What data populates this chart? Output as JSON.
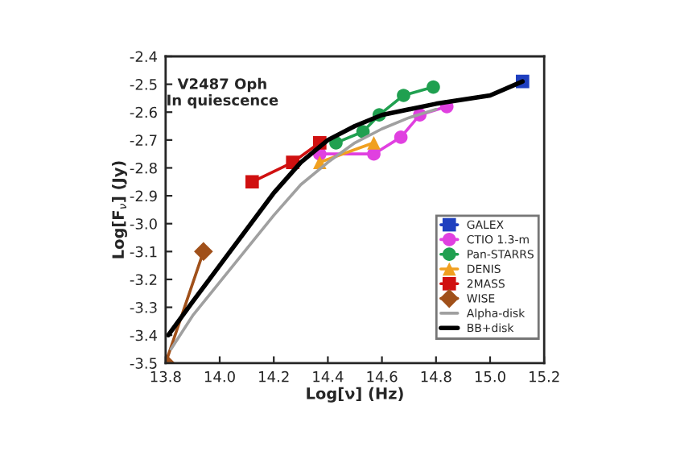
{
  "chart_data": {
    "type": "line",
    "xlabel": "Log[ν] (Hz)",
    "ylabel": "Log[F$_{ν}$] (Jy)",
    "annotations": [
      "V2487 Oph\nIn quiescence"
    ],
    "xlim": [
      13.8,
      15.2
    ],
    "xticks": [
      {
        "value": 13.8,
        "label": "13.8"
      },
      {
        "value": 14.0,
        "label": "14.0"
      },
      {
        "value": 14.2,
        "label": "14.2"
      },
      {
        "value": 14.4,
        "label": "14.4"
      },
      {
        "value": 14.6,
        "label": "14.6"
      },
      {
        "value": 14.8,
        "label": "14.8"
      },
      {
        "value": 15.0,
        "label": "15.0"
      },
      {
        "value": 15.2,
        "label": "15.2"
      }
    ],
    "ylim": [
      -3.5,
      -2.4
    ],
    "yticks": [
      -3.5,
      -3.4,
      -3.3,
      -3.2,
      -3.1,
      {
        "value": -3.0,
        "label": "-3.0"
      },
      -2.9,
      -2.8,
      -2.7,
      -2.6,
      -2.5,
      -2.4
    ],
    "grid": false,
    "legend": "right",
    "series": [
      {
        "name": "GALEX",
        "color": "#1f3fbf",
        "marker": "square",
        "x": [
          15.12
        ],
        "values": [
          -2.49
        ]
      },
      {
        "name": "CTIO 1.3-m",
        "color": "#e040e0",
        "marker": "circle",
        "x": [
          14.37,
          14.57,
          14.67,
          14.74,
          14.84
        ],
        "values": [
          -2.75,
          -2.75,
          -2.69,
          -2.61,
          -2.58
        ]
      },
      {
        "name": "Pan-STARRS",
        "color": "#20a050",
        "marker": "circle",
        "x": [
          14.43,
          14.53,
          14.59,
          14.68,
          14.79
        ],
        "values": [
          -2.71,
          -2.67,
          -2.61,
          -2.54,
          -2.51
        ]
      },
      {
        "name": "DENIS",
        "color": "#f0a020",
        "marker": "triangle",
        "x": [
          14.37,
          14.57
        ],
        "values": [
          -2.78,
          -2.71
        ]
      },
      {
        "name": "2MASS",
        "color": "#d01010",
        "marker": "square",
        "x": [
          14.12,
          14.27,
          14.37
        ],
        "values": [
          -2.85,
          -2.78,
          -2.71
        ]
      },
      {
        "name": "WISE",
        "color": "#a0501a",
        "marker": "diamond",
        "x": [
          13.8,
          13.94
        ],
        "values": [
          -3.5,
          -3.1
        ]
      },
      {
        "name": "Alpha-disk",
        "color": "#a0a0a0",
        "marker": "none",
        "x": [
          13.82,
          13.9,
          14.0,
          14.1,
          14.2,
          14.3,
          14.4,
          14.5,
          14.6,
          14.7,
          14.8
        ],
        "values": [
          -3.45,
          -3.33,
          -3.21,
          -3.09,
          -2.97,
          -2.86,
          -2.78,
          -2.71,
          -2.66,
          -2.62,
          -2.59
        ]
      },
      {
        "name": "BB+disk",
        "color": "#000000",
        "marker": "none",
        "x": [
          13.81,
          13.9,
          14.0,
          14.1,
          14.2,
          14.3,
          14.4,
          14.5,
          14.6,
          14.8,
          15.0,
          15.12
        ],
        "values": [
          -3.4,
          -3.28,
          -3.15,
          -3.02,
          -2.89,
          -2.78,
          -2.7,
          -2.65,
          -2.61,
          -2.57,
          -2.54,
          -2.49
        ]
      }
    ]
  }
}
